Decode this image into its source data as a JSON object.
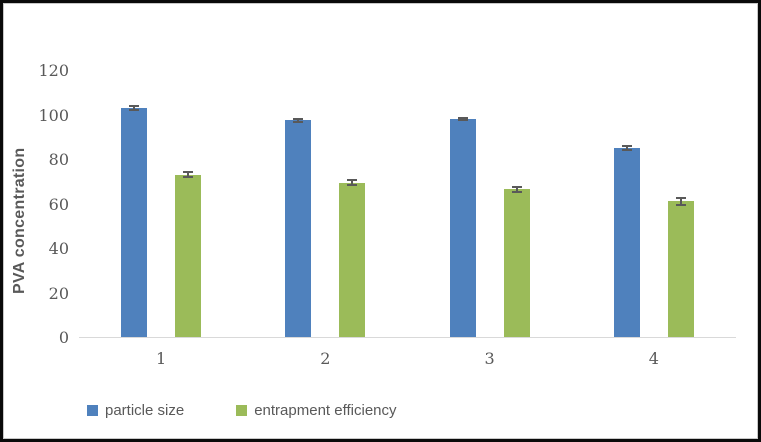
{
  "chart_data": {
    "type": "bar",
    "categories": [
      "1",
      "2",
      "3",
      "4"
    ],
    "series": [
      {
        "name": "particle size",
        "color": "#4f81bd",
        "values": [
          103,
          97.5,
          98,
          85
        ],
        "errors": [
          1.5,
          1,
          1,
          1.5
        ]
      },
      {
        "name": "entrapment efficiency",
        "color": "#9bbb59",
        "values": [
          73,
          69.5,
          66.5,
          61
        ],
        "errors": [
          1.5,
          1.5,
          1.5,
          2
        ]
      }
    ],
    "title": "",
    "xlabel": "",
    "ylabel": "PVA concentration",
    "yticks": [
      0,
      20,
      40,
      60,
      80,
      100,
      120
    ],
    "ylim": [
      0,
      135
    ],
    "grid": false,
    "legend_position": "bottom-left",
    "error_bar_color": "#595959",
    "axis_line_color": "#d9d9d9",
    "text_color": "#595959",
    "frame_border_color": "#0a0a0a"
  }
}
